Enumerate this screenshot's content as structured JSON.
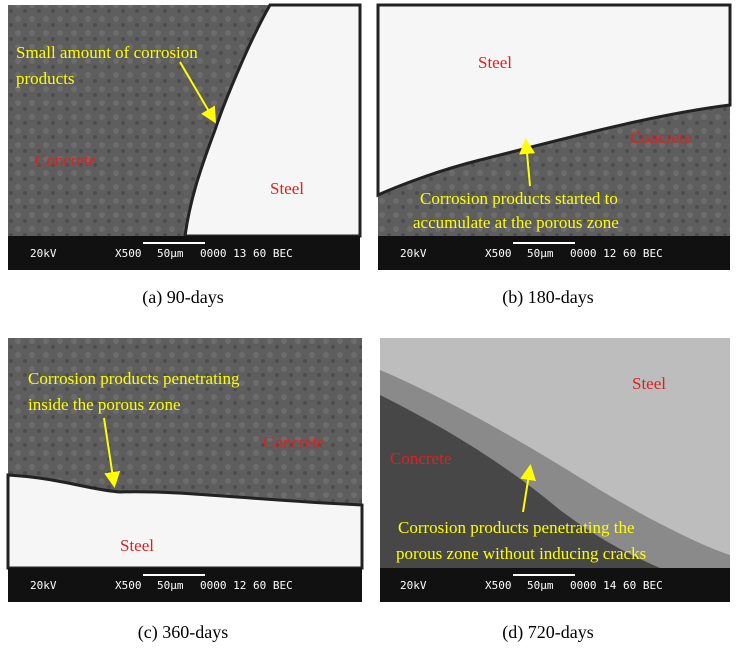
{
  "panels": [
    {
      "caption": "(a) 90-days",
      "annotation": [
        "Small amount of corrosion",
        "products"
      ],
      "steel": "Steel",
      "concrete": "Concrete",
      "sem_bar": {
        "voltage": "20kV",
        "magnification": "X500",
        "scale": "50µm",
        "info": "0000 13 60 BEC"
      }
    },
    {
      "caption": "(b) 180-days",
      "annotation": [
        "Corrosion products started to",
        "accumulate at the porous zone"
      ],
      "steel": "Steel",
      "concrete": "Concrete",
      "sem_bar": {
        "voltage": "20kV",
        "magnification": "X500",
        "scale": "50µm",
        "info": "0000 12 60 BEC"
      }
    },
    {
      "caption": "(c) 360-days",
      "annotation": [
        "Corrosion products penetrating",
        "inside the porous zone"
      ],
      "steel": "Steel",
      "concrete": "Concrete",
      "sem_bar": {
        "voltage": "20kV",
        "magnification": "X500",
        "scale": "50µm",
        "info": "0000 12 60 BEC"
      }
    },
    {
      "caption": "(d) 720-days",
      "annotation": [
        "Corrosion products penetrating the",
        "porous zone without inducing cracks"
      ],
      "steel": "Steel",
      "concrete": "Concrete",
      "sem_bar": {
        "voltage": "20kV",
        "magnification": "X500",
        "scale": "50µm",
        "info": "0000 14 60 BEC"
      }
    }
  ]
}
